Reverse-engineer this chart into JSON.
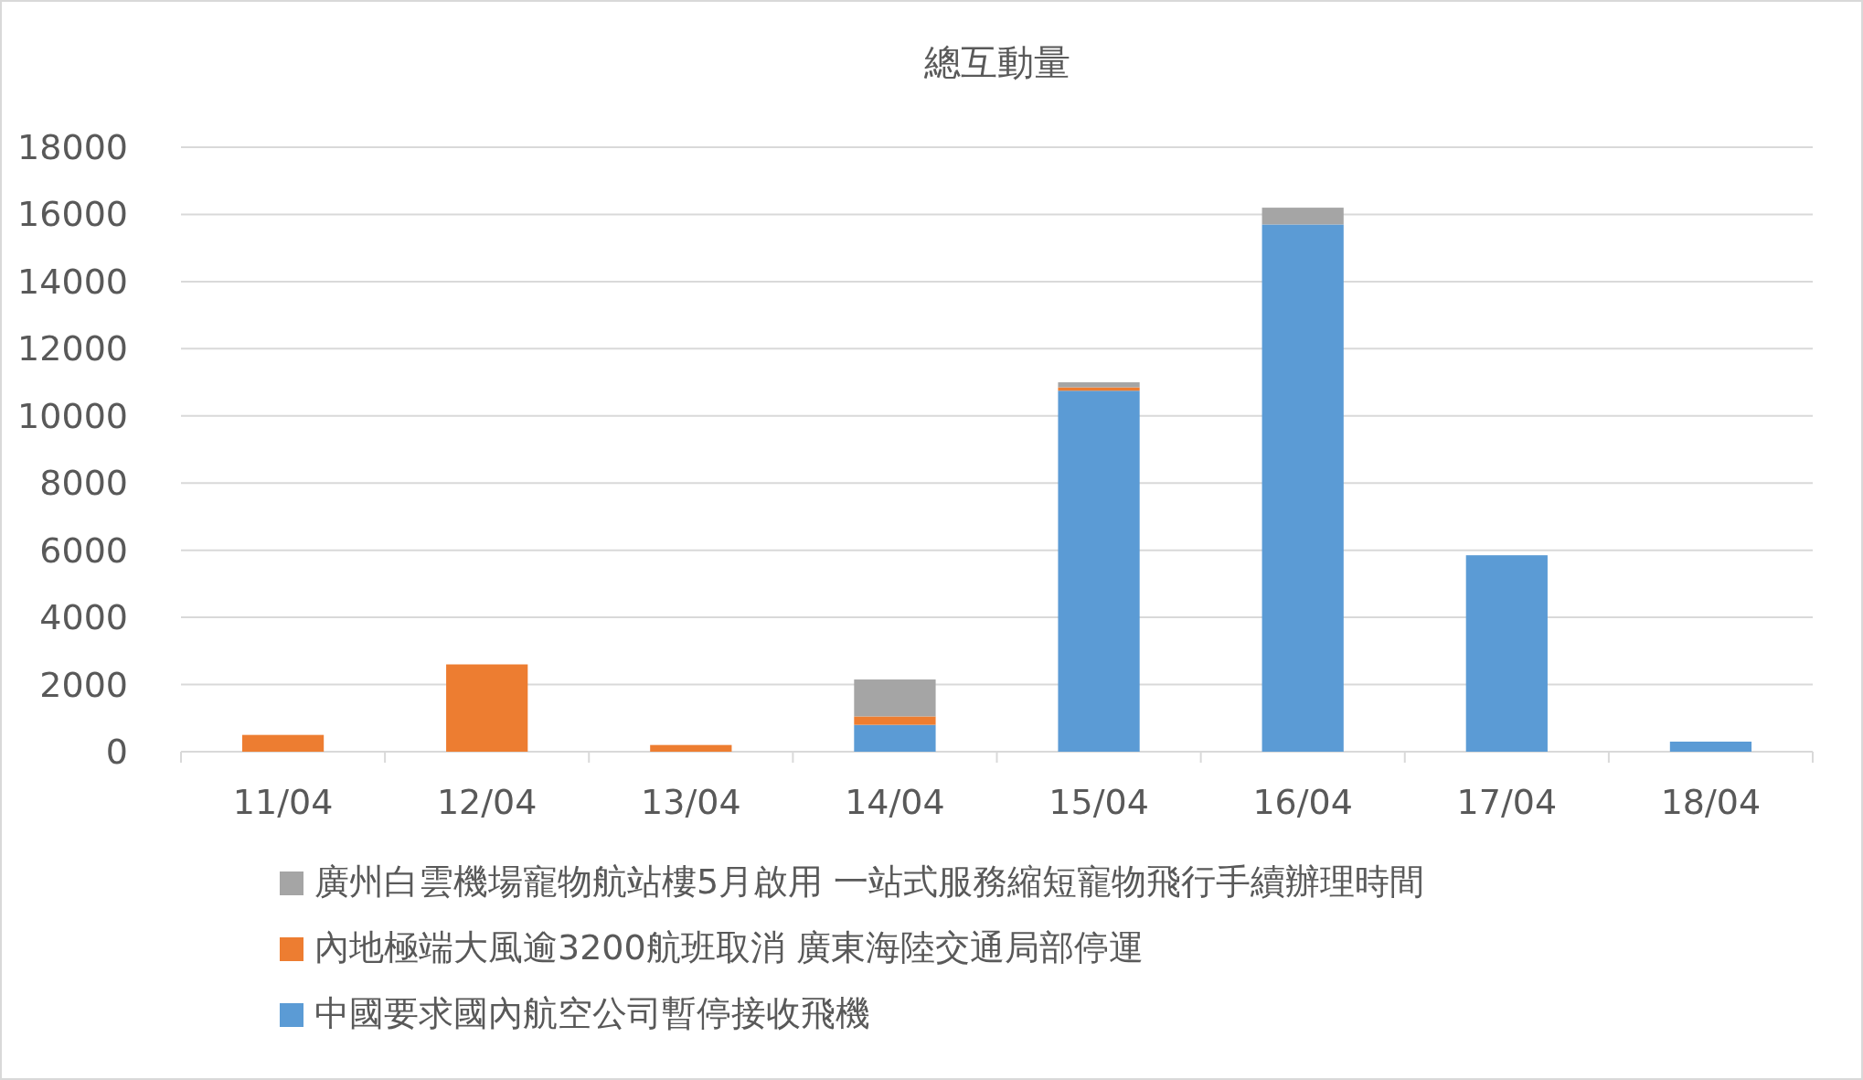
{
  "chart_data": {
    "type": "bar",
    "title": "總互動量",
    "stacked": true,
    "categories": [
      "11/04",
      "12/04",
      "13/04",
      "14/04",
      "15/04",
      "16/04",
      "17/04",
      "18/04"
    ],
    "series": [
      {
        "name": "中國要求國內航空公司暫停接收飛機",
        "color": "#5b9bd5",
        "values": [
          null,
          null,
          null,
          800,
          10750,
          15700,
          5850,
          300
        ]
      },
      {
        "name": "內地極端大風逾3200航班取消 廣東海陸交通局部停運",
        "color": "#ed7d31",
        "values": [
          500,
          2600,
          200,
          250,
          100,
          null,
          null,
          null
        ]
      },
      {
        "name": "廣州白雲機場寵物航站樓5月啟用 一站式服務縮短寵物飛行手續辦理時間",
        "color": "#a5a5a5",
        "values": [
          null,
          null,
          null,
          1100,
          150,
          500,
          null,
          null
        ]
      }
    ],
    "ylim": [
      0,
      18000
    ],
    "yticks": [
      0,
      2000,
      4000,
      6000,
      8000,
      10000,
      12000,
      14000,
      16000,
      18000
    ],
    "grid": "y",
    "legend": "bottom"
  }
}
